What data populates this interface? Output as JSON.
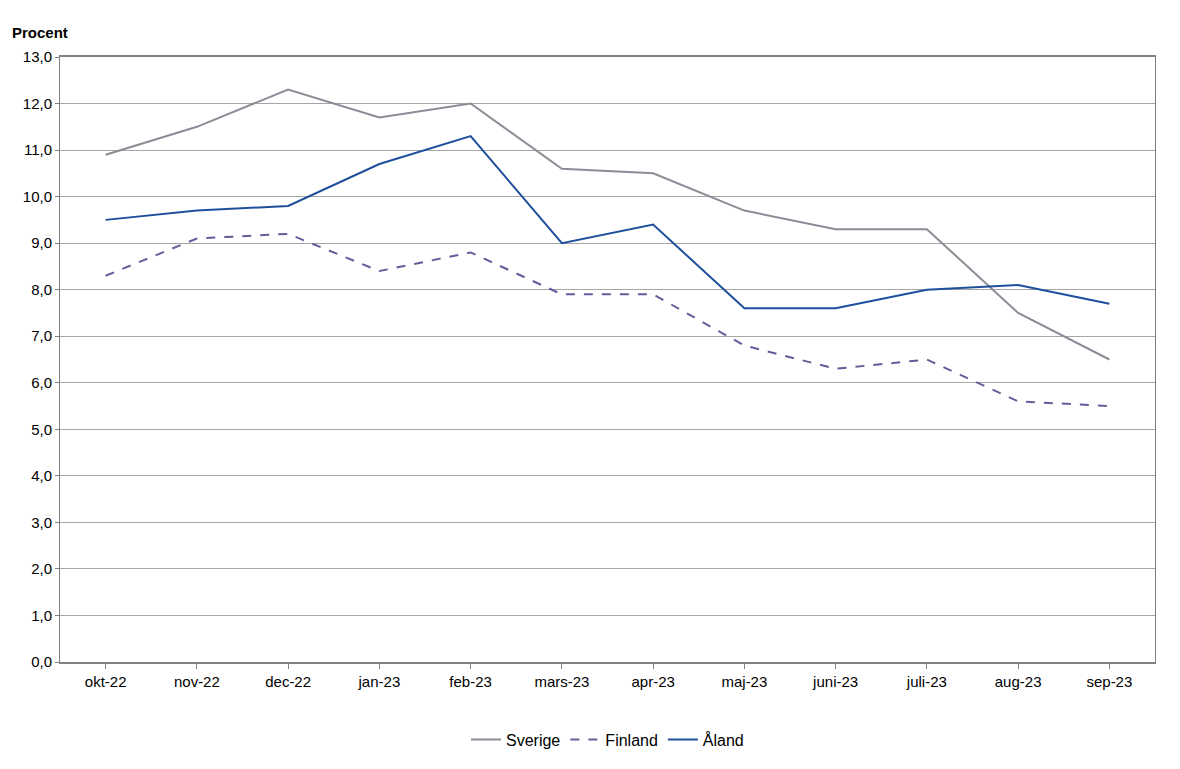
{
  "chart_data": {
    "type": "line",
    "ylabel": "Procent",
    "categories": [
      "okt-22",
      "nov-22",
      "dec-22",
      "jan-23",
      "feb-23",
      "mars-23",
      "apr-23",
      "maj-23",
      "juni-23",
      "juli-23",
      "aug-23",
      "sep-23"
    ],
    "series": [
      {
        "name": "Sverige",
        "color": "#8c8c96",
        "line_style": "solid",
        "values": [
          10.9,
          11.5,
          12.3,
          11.7,
          12.0,
          10.6,
          10.5,
          9.7,
          9.3,
          9.3,
          7.5,
          6.5
        ]
      },
      {
        "name": "Finland",
        "color": "#6a5a9c",
        "line_style": "dash",
        "values": [
          8.3,
          9.1,
          9.2,
          8.4,
          8.8,
          7.9,
          7.9,
          6.8,
          6.3,
          6.5,
          5.6,
          5.5
        ]
      },
      {
        "name": "Åland",
        "color": "#1f4f9c",
        "line_style": "solid",
        "values": [
          9.5,
          9.7,
          9.8,
          10.7,
          11.3,
          9.0,
          9.4,
          7.6,
          7.6,
          8.0,
          8.1,
          7.7
        ]
      }
    ],
    "ylim": [
      0,
      13
    ],
    "yticks": [
      {
        "value": 0,
        "label": "0,0"
      },
      {
        "value": 1,
        "label": "1,0"
      },
      {
        "value": 2,
        "label": "2,0"
      },
      {
        "value": 3,
        "label": "3,0"
      },
      {
        "value": 4,
        "label": "4,0"
      },
      {
        "value": 5,
        "label": "5,0"
      },
      {
        "value": 6,
        "label": "6,0"
      },
      {
        "value": 7,
        "label": "7,0"
      },
      {
        "value": 8,
        "label": "8,0"
      },
      {
        "value": 9,
        "label": "9,0"
      },
      {
        "value": 10,
        "label": "10,0"
      },
      {
        "value": 11,
        "label": "11,0"
      },
      {
        "value": 12,
        "label": "12,0"
      },
      {
        "value": 13,
        "label": "13,0"
      }
    ],
    "grid": true,
    "legend": "bottom"
  }
}
